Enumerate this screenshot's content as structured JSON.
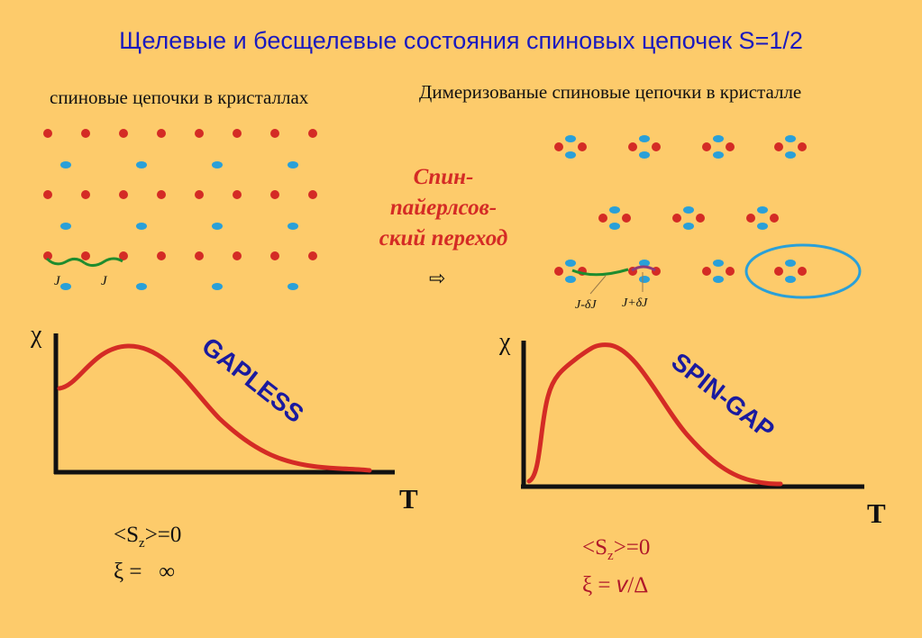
{
  "title": "Щелевые и бесщелевые состояния спиновых цепочек S=1/2",
  "left_caption": "спиновые цепочки в кристаллах",
  "right_caption": "Димеризованые спиновые цепочки в кристалле",
  "transition": {
    "line1": "Спин-",
    "line2": "пайерлсов-",
    "line3": "ский переход",
    "arrow": "⇨"
  },
  "left_chain": {
    "coupling_label_1": "J",
    "coupling_label_2": "J"
  },
  "right_chain": {
    "coupling_label_weak": "J-δJ",
    "coupling_label_strong": "J+δJ"
  },
  "left_plot": {
    "y_axis_label": "χ",
    "x_axis_label": "T",
    "tag": "GAPLESS"
  },
  "right_plot": {
    "y_axis_label": "χ",
    "x_axis_label": "T",
    "tag": "SPIN-GAP"
  },
  "left_formula": {
    "line1_prefix": "<S",
    "line1_sub": "z",
    "line1_suffix": ">=0",
    "line2": "ξ =   ∞"
  },
  "right_formula": {
    "line1_prefix": "<S",
    "line1_sub": "z",
    "line1_suffix": ">=0",
    "line2_prefix": "ξ = ",
    "line2_v": "v",
    "line2_suffix": "/Δ"
  },
  "colors": {
    "background": "#FDCB6B",
    "red_atom": "#D42B25",
    "blue_atom": "#2AA0D8",
    "curve": "#D42B25",
    "title": "#1A1ABF",
    "tag": "#1A1A9F",
    "coupling_weak": "#1E8C2E",
    "coupling_strong": "#8E3A7A",
    "dimer_ring": "#2AA0D8"
  }
}
